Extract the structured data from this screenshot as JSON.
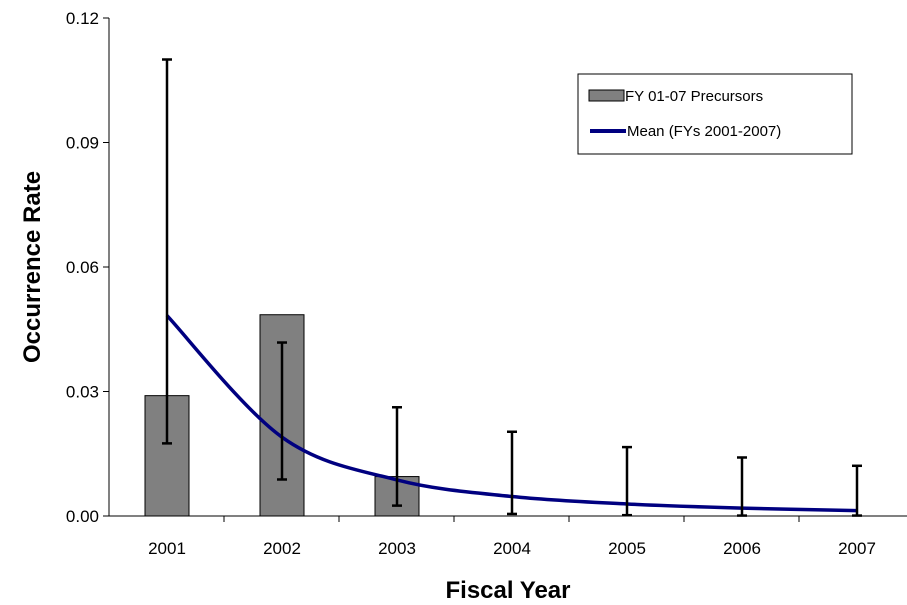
{
  "chart_data": {
    "type": "bar",
    "categories": [
      "2001",
      "2002",
      "2003",
      "2004",
      "2005",
      "2006",
      "2007"
    ],
    "title": "",
    "xlabel": "Fiscal Year",
    "ylabel": "Occurrence Rate",
    "ylim": [
      0,
      0.12
    ],
    "yticks": [
      "0.00",
      "0.03",
      "0.06",
      "0.09",
      "0.12"
    ],
    "grid": false,
    "legend_position": "top-right",
    "series": [
      {
        "name": "FY 01-07 Precursors",
        "type": "bar",
        "color": "#808080",
        "values": [
          0.029,
          0.0485,
          0.0095,
          0,
          0,
          0,
          0
        ],
        "error_low": [
          0.0175,
          0.0088,
          0.0025,
          0.0005,
          0.0002,
          0.0001,
          0.0001
        ],
        "error_high": [
          0.11,
          0.0418,
          0.0262,
          0.0203,
          0.0166,
          0.0141,
          0.0121
        ]
      },
      {
        "name": "Mean (FYs 2001-2007)",
        "type": "line",
        "color": "#000080",
        "values": [
          0.0483,
          0.019,
          0.0087,
          0.0047,
          0.0029,
          0.0019,
          0.0013
        ]
      }
    ]
  }
}
